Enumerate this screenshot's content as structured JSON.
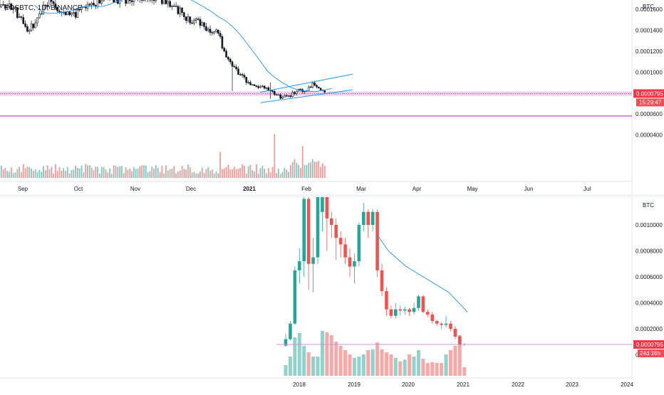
{
  "chart_data": [
    {
      "type": "candlestick",
      "title": "EOSBTC, 1D, BINANCE",
      "currency": "BTC",
      "x_ticks": [
        "Sep",
        "Oct",
        "Nov",
        "Dec",
        "2021",
        "Feb",
        "Mar",
        "Apr",
        "May",
        "Jun",
        "Jul"
      ],
      "y_ticks": [
        "0.0001600",
        "0.0001400",
        "0.0001200",
        "0.0001000",
        "0.0000600",
        "0.0000400"
      ],
      "y_tick_values": [
        0.00016,
        0.00014,
        0.00012,
        0.0001,
        6e-05,
        4e-05
      ],
      "ylim": [
        3.2e-05,
        0.000173
      ],
      "last_price": "0.0000795",
      "last_price_value": 7.95e-05,
      "countdown": "15:29:47",
      "support_zone": [
        7.75e-05,
        8.15e-05
      ],
      "channel": {
        "lower": [
          [
            "2021-01-08",
            7.08e-05
          ],
          [
            "2021-02-10",
            8.1e-05
          ]
        ],
        "upper": [
          [
            "2021-01-08",
            8.08e-05
          ],
          [
            "2021-02-10",
            9.6e-05
          ]
        ]
      },
      "colors": {
        "up": "#26a69a",
        "down": "#ef5350",
        "candle": "#131722",
        "ma": "#2196f3",
        "zone": "#9c27b0",
        "price_tag": "#f23645"
      }
    },
    {
      "type": "candlestick",
      "currency": "BTC",
      "x_ticks": [
        "2018",
        "2019",
        "2020",
        "2021",
        "2022",
        "2023",
        "2024"
      ],
      "y_ticks": [
        "0.0010000",
        "0.0008000",
        "0.0006000",
        "0.0004000",
        "0.0002000",
        "0"
      ],
      "y_tick_values": [
        0.001,
        0.0008,
        0.0006,
        0.0004,
        0.0002,
        0
      ],
      "ylim": [
        0,
        0.00116
      ],
      "last_price": "0.0000795",
      "last_price_value": 7.95e-05,
      "countdown": "24d 16h",
      "colors": {
        "up": "#26a69a",
        "down": "#ef5350",
        "ma": "#2196f3",
        "level": "#ce93d8",
        "price_tag": "#f23645"
      }
    }
  ]
}
